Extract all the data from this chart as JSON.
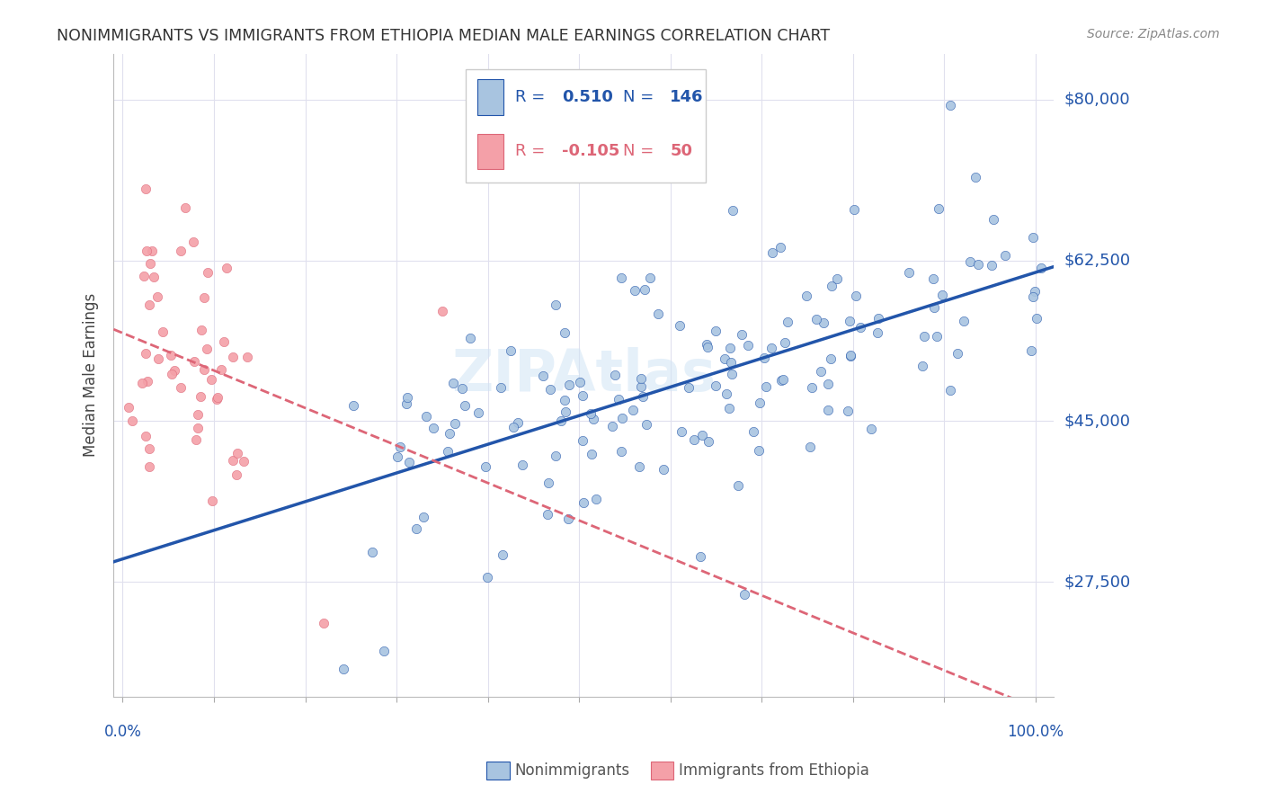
{
  "title": "NONIMMIGRANTS VS IMMIGRANTS FROM ETHIOPIA MEDIAN MALE EARNINGS CORRELATION CHART",
  "source": "Source: ZipAtlas.com",
  "ylabel": "Median Male Earnings",
  "ytick_labels": [
    "$27,500",
    "$45,000",
    "$62,500",
    "$80,000"
  ],
  "ytick_values": [
    27500,
    45000,
    62500,
    80000
  ],
  "y_min": 15000,
  "y_max": 85000,
  "x_min": -0.01,
  "x_max": 1.02,
  "nonimm_color": "#a8c4e0",
  "imm_color": "#f4a0a8",
  "nonimm_line_color": "#2255aa",
  "imm_line_color": "#dd6677",
  "nonimm_label": "Nonimmigrants",
  "imm_label": "Immigrants from Ethiopia",
  "blue_text_color": "#2255aa",
  "pink_text_color": "#dd6677",
  "legend_R1_val": "0.510",
  "legend_N1_val": "146",
  "legend_R2_val": "-0.105",
  "legend_N2_val": "50"
}
